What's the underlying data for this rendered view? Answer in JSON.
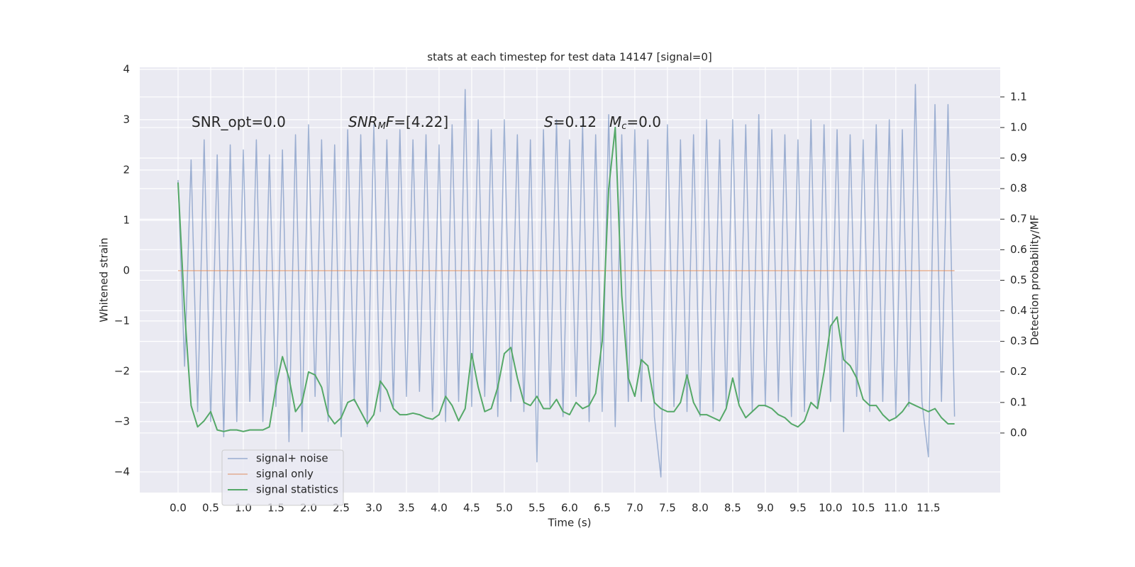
{
  "chart_data": {
    "type": "line",
    "title": "stats at each timestep for test data 14147 [signal=0]",
    "xlabel": "Time (s)",
    "ylabel": "Whitened strain",
    "y2label": "Detection probability/MF",
    "annotations": [
      [
        {
          "text": "SNR_opt=0.0"
        }
      ],
      [
        {
          "text": "SNR",
          "style": "italic"
        },
        {
          "text": "M",
          "style": "italic-sub"
        },
        {
          "text": "F",
          "style": "italic"
        },
        {
          "text": "=[4.22]"
        }
      ],
      [
        {
          "text": "S",
          "style": "italic"
        },
        {
          "text": "=0.12"
        }
      ],
      [
        {
          "text": "M",
          "style": "italic"
        },
        {
          "text": "c",
          "style": "italic-sub"
        },
        {
          "text": "=0.0"
        }
      ]
    ],
    "x": [
      0,
      0.1,
      0.2,
      0.3,
      0.4,
      0.5,
      0.6,
      0.7,
      0.8,
      0.9,
      1,
      1.1,
      1.2,
      1.3,
      1.4,
      1.5,
      1.6,
      1.7,
      1.8,
      1.9,
      2,
      2.1,
      2.2,
      2.3,
      2.4,
      2.5,
      2.6,
      2.7,
      2.8,
      2.9,
      3,
      3.1,
      3.2,
      3.3,
      3.4,
      3.5,
      3.6,
      3.7,
      3.8,
      3.9,
      4,
      4.1,
      4.2,
      4.3,
      4.4,
      4.5,
      4.6,
      4.7,
      4.8,
      4.9,
      5,
      5.1,
      5.2,
      5.3,
      5.4,
      5.5,
      5.6,
      5.7,
      5.8,
      5.9,
      6,
      6.1,
      6.2,
      6.3,
      6.4,
      6.5,
      6.6,
      6.7,
      6.8,
      6.9,
      7,
      7.1,
      7.2,
      7.3,
      7.4,
      7.5,
      7.6,
      7.7,
      7.8,
      7.9,
      8,
      8.1,
      8.2,
      8.3,
      8.4,
      8.5,
      8.6,
      8.7,
      8.8,
      8.9,
      9,
      9.1,
      9.2,
      9.3,
      9.4,
      9.5,
      9.6,
      9.7,
      9.8,
      9.9,
      10,
      10.1,
      10.2,
      10.3,
      10.4,
      10.5,
      10.6,
      10.7,
      10.8,
      10.9,
      11,
      11.1,
      11.2,
      11.3,
      11.4,
      11.5,
      11.6,
      11.7,
      11.8,
      11.9
    ],
    "series": [
      {
        "name": "signal+ noise",
        "color": "#4c72b0",
        "values": [
          1.8,
          -1.9,
          2.2,
          -2.8,
          2.6,
          -3.0,
          2.3,
          -3.3,
          2.5,
          -3.0,
          2.4,
          -2.6,
          2.6,
          -3.0,
          2.3,
          -2.7,
          2.4,
          -3.4,
          2.7,
          -3.2,
          2.9,
          -2.5,
          2.6,
          -3.0,
          2.5,
          -3.3,
          2.8,
          -2.6,
          2.7,
          -3.1,
          2.9,
          -2.8,
          2.6,
          -2.7,
          2.8,
          -2.5,
          2.6,
          -2.4,
          2.7,
          -2.8,
          2.5,
          -3.0,
          2.9,
          -2.6,
          3.6,
          -2.7,
          3.0,
          -2.5,
          2.8,
          -2.9,
          3.0,
          -2.6,
          2.7,
          -2.8,
          2.6,
          -3.8,
          2.8,
          -2.7,
          3.0,
          -2.9,
          2.6,
          -2.5,
          2.9,
          -3.0,
          2.7,
          -2.8,
          3.1,
          -3.1,
          2.7,
          -2.6,
          2.8,
          -2.6,
          2.6,
          -2.9,
          -4.1,
          2.9,
          -2.7,
          2.6,
          -2.8,
          2.7,
          -2.9,
          3.0,
          -2.8,
          2.6,
          -2.7,
          3.0,
          -2.6,
          2.9,
          -2.8,
          3.1,
          -2.7,
          2.8,
          -2.6,
          2.7,
          -2.9,
          2.6,
          -2.8,
          3.0,
          -2.7,
          2.9,
          -2.6,
          2.8,
          -3.2,
          2.7,
          -2.5,
          2.6,
          -2.8,
          2.9,
          -2.6,
          3.0,
          -2.9,
          2.8,
          -2.7,
          3.7,
          -2.6,
          -3.7,
          3.3,
          -2.6,
          3.3,
          -2.9
        ]
      },
      {
        "name": "signal only",
        "color": "#dd8452",
        "values": [
          0,
          0,
          0,
          0,
          0,
          0,
          0,
          0,
          0,
          0,
          0,
          0,
          0,
          0,
          0,
          0,
          0,
          0,
          0,
          0,
          0,
          0,
          0,
          0,
          0,
          0,
          0,
          0,
          0,
          0,
          0,
          0,
          0,
          0,
          0,
          0,
          0,
          0,
          0,
          0,
          0,
          0,
          0,
          0,
          0,
          0,
          0,
          0,
          0,
          0,
          0,
          0,
          0,
          0,
          0,
          0,
          0,
          0,
          0,
          0,
          0,
          0,
          0,
          0,
          0,
          0,
          0,
          0,
          0,
          0,
          0,
          0,
          0,
          0,
          0,
          0,
          0,
          0,
          0,
          0,
          0,
          0,
          0,
          0,
          0,
          0,
          0,
          0,
          0,
          0,
          0,
          0,
          0,
          0,
          0,
          0,
          0,
          0,
          0,
          0,
          0,
          0,
          0,
          0,
          0,
          0,
          0,
          0,
          0,
          0,
          0,
          0,
          0,
          0,
          0,
          0,
          0,
          0,
          0,
          0
        ]
      },
      {
        "name": "signal statistics",
        "color": "#55a868",
        "axis": "y2",
        "values": [
          0.82,
          0.4,
          0.09,
          0.02,
          0.04,
          0.07,
          0.01,
          0.005,
          0.01,
          0.01,
          0.005,
          0.01,
          0.01,
          0.01,
          0.02,
          0.15,
          0.25,
          0.18,
          0.07,
          0.1,
          0.2,
          0.19,
          0.15,
          0.06,
          0.03,
          0.05,
          0.1,
          0.11,
          0.07,
          0.03,
          0.06,
          0.17,
          0.14,
          0.08,
          0.06,
          0.06,
          0.065,
          0.06,
          0.05,
          0.045,
          0.06,
          0.12,
          0.09,
          0.04,
          0.08,
          0.26,
          0.15,
          0.07,
          0.08,
          0.15,
          0.26,
          0.28,
          0.18,
          0.1,
          0.09,
          0.12,
          0.08,
          0.08,
          0.11,
          0.07,
          0.06,
          0.1,
          0.08,
          0.09,
          0.13,
          0.3,
          0.8,
          1.0,
          0.45,
          0.18,
          0.12,
          0.24,
          0.22,
          0.1,
          0.08,
          0.07,
          0.07,
          0.1,
          0.19,
          0.1,
          0.06,
          0.06,
          0.05,
          0.04,
          0.08,
          0.18,
          0.09,
          0.05,
          0.07,
          0.09,
          0.09,
          0.08,
          0.06,
          0.05,
          0.03,
          0.02,
          0.04,
          0.1,
          0.08,
          0.2,
          0.35,
          0.38,
          0.24,
          0.22,
          0.18,
          0.11,
          0.09,
          0.09,
          0.06,
          0.04,
          0.05,
          0.07,
          0.1,
          0.09,
          0.08,
          0.07,
          0.08,
          0.05,
          0.03,
          0.03
        ]
      }
    ],
    "xlim": [
      -0.587,
      12.6
    ],
    "ylim": [
      -4.41,
      4.04
    ],
    "y2lim": [
      -0.195,
      1.197
    ],
    "xticks": [
      {
        "value": 0,
        "label": "0.0"
      },
      0.5,
      {
        "value": 1,
        "label": "1.0"
      },
      1.5,
      {
        "value": 2,
        "label": "2.0"
      },
      2.5,
      {
        "value": 3,
        "label": "3.0"
      },
      3.5,
      {
        "value": 4,
        "label": "4.0"
      },
      4.5,
      {
        "value": 5,
        "label": "5.0"
      },
      5.5,
      {
        "value": 6,
        "label": "6.0"
      },
      6.5,
      {
        "value": 7,
        "label": "7.0"
      },
      7.5,
      {
        "value": 8,
        "label": "8.0"
      },
      8.5,
      {
        "value": 9,
        "label": "9.0"
      },
      9.5,
      {
        "value": 10,
        "label": "10.0"
      },
      10.5,
      {
        "value": 11,
        "label": "11.0"
      },
      11.5
    ],
    "yticks": [
      {
        "value": -4,
        "label": "−4"
      },
      {
        "value": -3,
        "label": "−3"
      },
      {
        "value": -2,
        "label": "−2"
      },
      {
        "value": -1,
        "label": "−1"
      },
      0,
      1,
      2,
      3,
      4
    ],
    "y2ticks": [
      {
        "value": 0,
        "label": "0.0"
      },
      0.1,
      0.2,
      0.3,
      0.4,
      0.5,
      0.6,
      0.7,
      0.8,
      0.9,
      {
        "value": 1,
        "label": "1.0"
      },
      1.1
    ],
    "grid": true,
    "legend": "lower left"
  }
}
